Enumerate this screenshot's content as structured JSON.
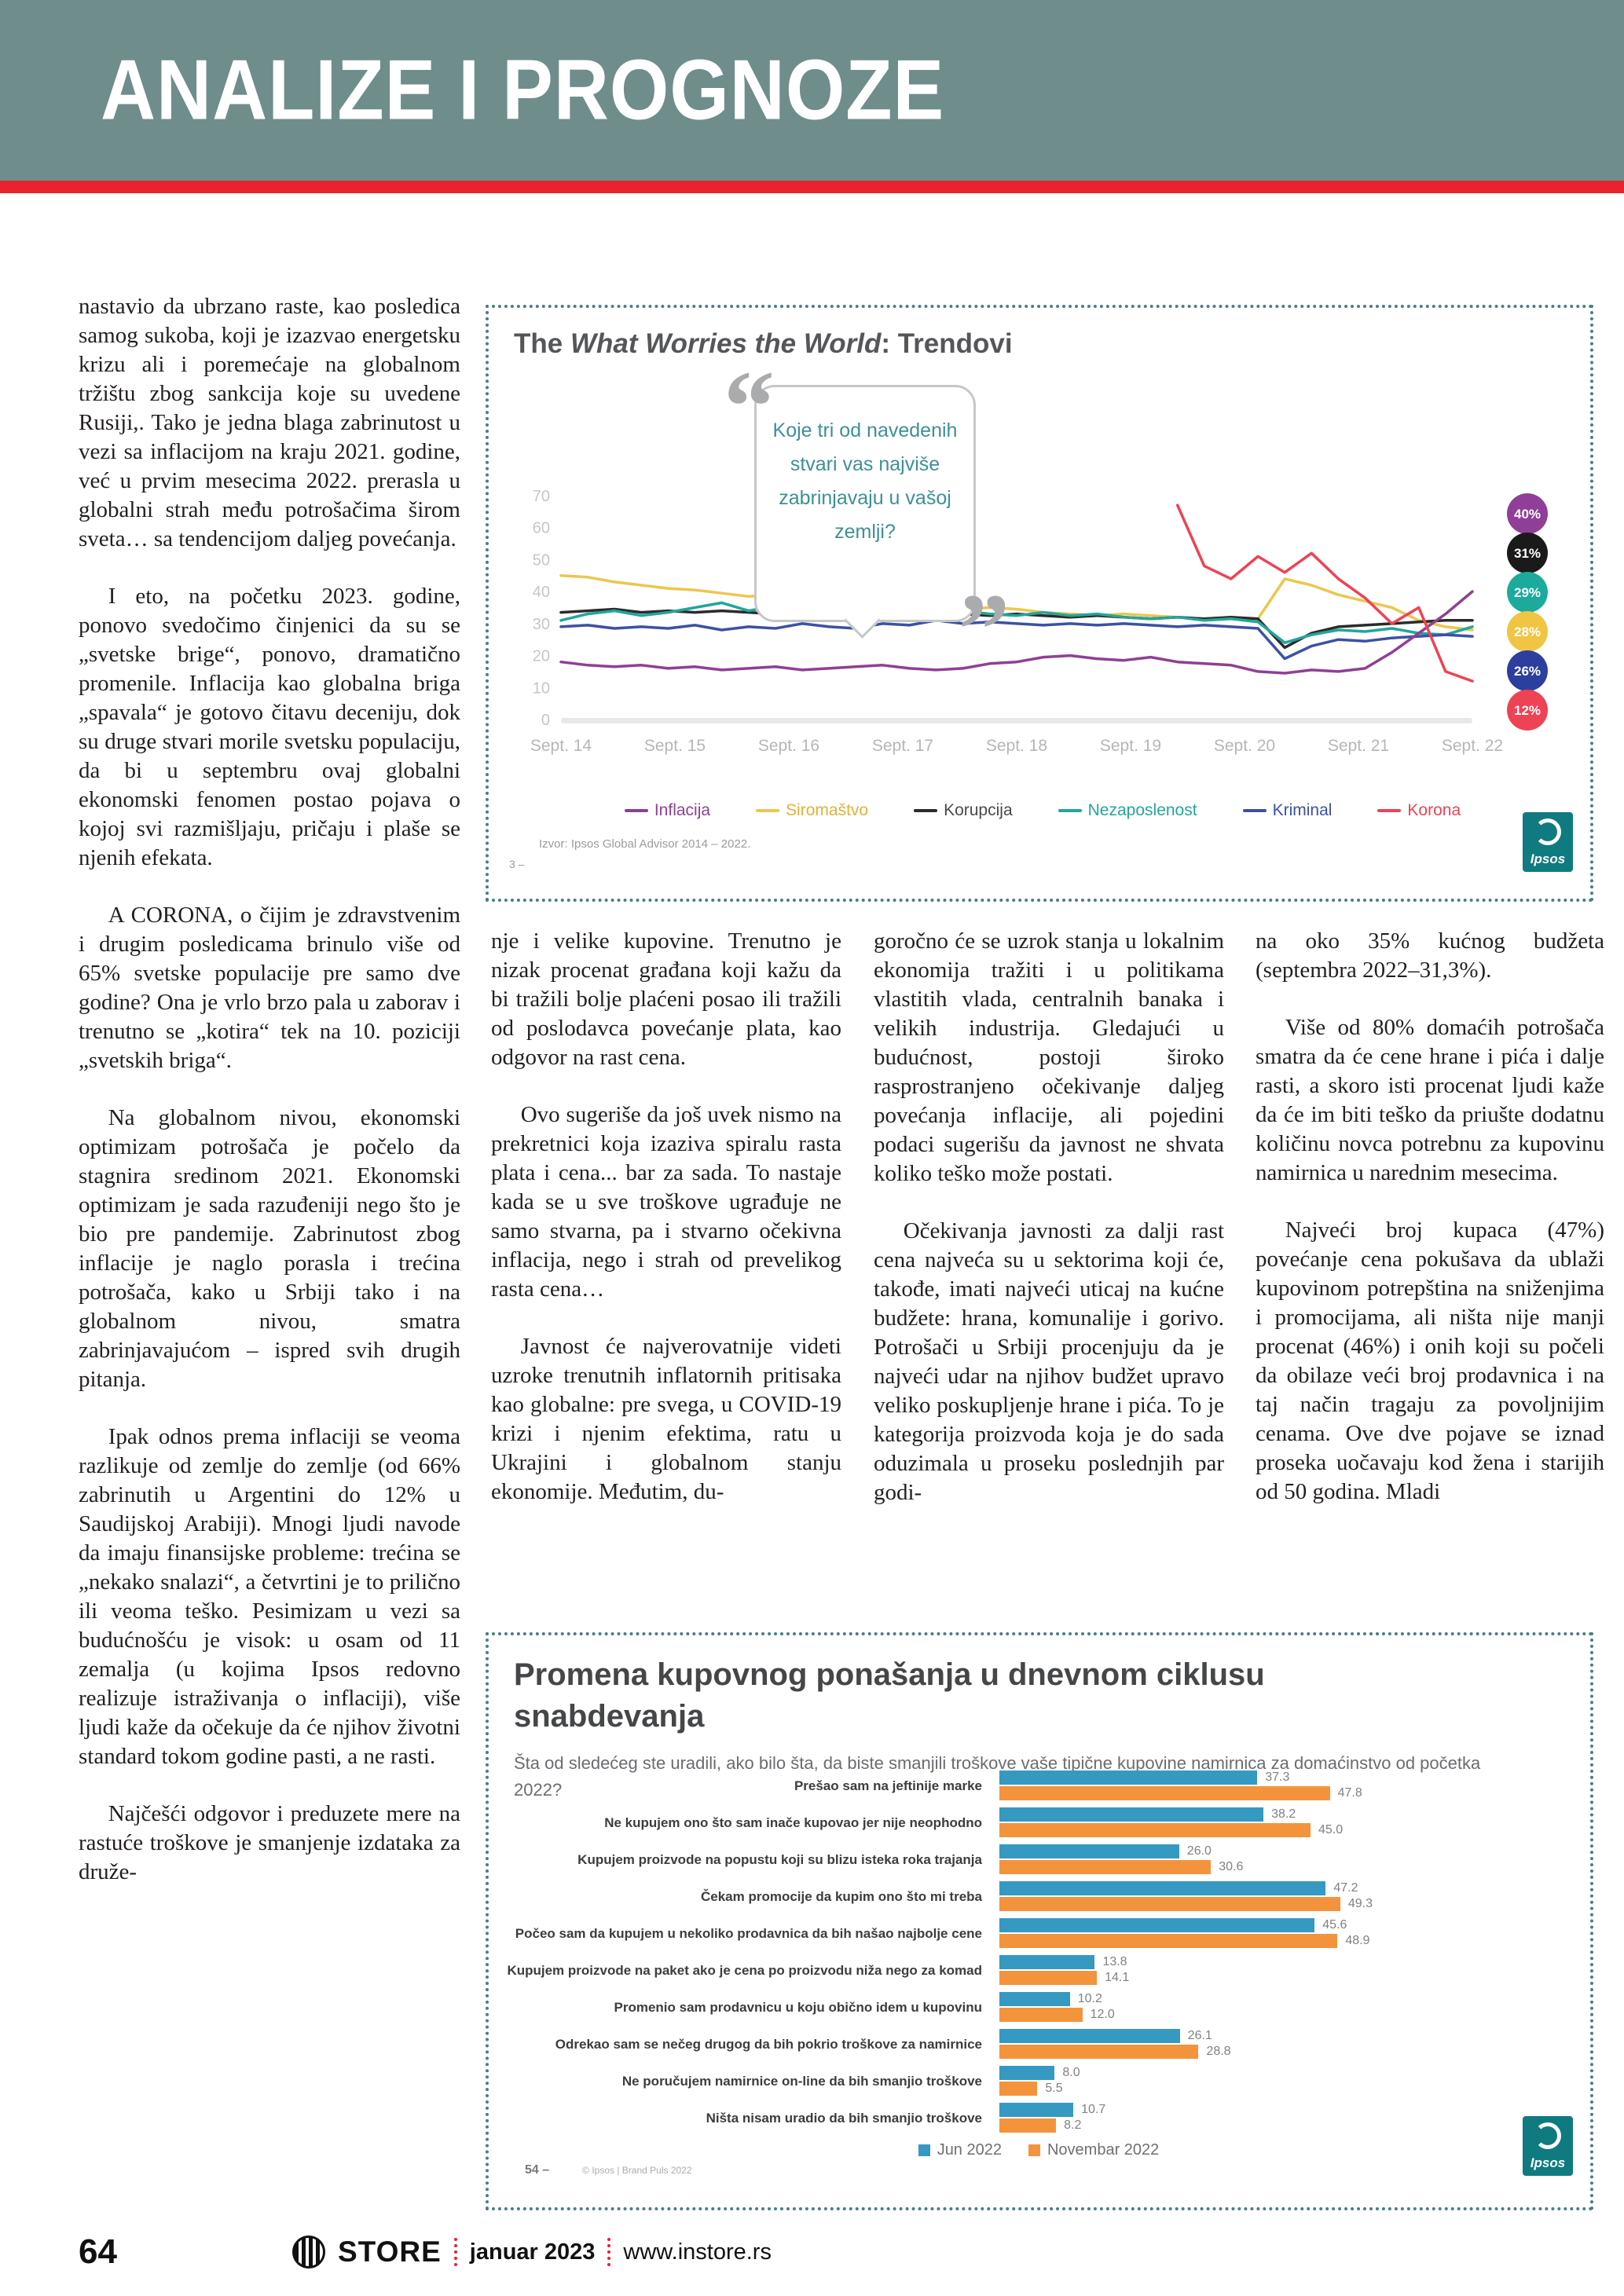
{
  "header": {
    "title": "ANALIZE I PROGNOZE"
  },
  "footer": {
    "page_number": "64",
    "brand": "STORE",
    "issue": "januar 2023",
    "site": "www.instore.rs"
  },
  "ipsos_logo_text": "Ipsos",
  "colors": {
    "header_bg": "#6f8d8b",
    "accent_red": "#e8222f",
    "chart_border": "#4a7d80",
    "ipsos_teal": "#0f7b80"
  },
  "article": {
    "columns": [
      {
        "name": "col1",
        "paragraphs": [
          "nastavio da ubrzano raste, kao posledica samog sukoba, koji je izazvao energetsku krizu  ali i poremećaje na globalnom tržištu zbog sankcija koje su uvedene Rusiji,. Tako je jedna blaga zabrinutost u vezi sa inflacijom na kraju 2021. godine, već u prvim mesecima 2022. prerasla u globalni strah među potrošačima širom sveta… sa tendencijom daljeg povećanja.",
          "I eto, na početku 2023. godine, ponovo svedočimo činjenici da su se „svetske brige“, ponovo, dramatično promenile. Inflacija kao globalna briga „spavala“ je gotovo čitavu deceniju, dok su druge stvari morile svetsku populaciju, da bi u septembru ovaj globalni ekonomski fenomen postao pojava o kojoj svi razmišljaju, pričaju i plaše se njenih efekata.",
          "A CORONA, o čijim je zdravstvenim i drugim posledicama brinulo više od 65% svetske populacije pre samo dve godine? Ona je vrlo brzo pala u zaborav i trenutno se „kotira“ tek na 10. poziciji „svetskih briga“.",
          "Na globalnom nivou, ekonomski optimizam potrošača je počelo da stagnira sredinom 2021. Ekonomski optimizam je sada razuđeniji nego što je bio pre pandemije. Zabrinutost zbog inflacije je naglo porasla i trećina potrošača, kako u Srbiji tako i na globalnom nivou, smatra zabrinjavajućom – ispred svih drugih pitanja.",
          "Ipak odnos prema inflaciji se veoma razlikuje od zemlje do zemlje (od 66% zabrinutih u Argentini do 12% u Saudijskoj Arabiji). Mnogi ljudi navode da imaju finansijske probleme: trećina se „nekako snalazi“, a četvrtini je to prilično ili veoma teško. Pesimizam u vezi sa budućnošću je visok: u osam od 11 zemalja (u kojima Ipsos redovno realizuje istraživanja o inflaciji), više ljudi kaže da očekuje da će njihov životni standard tokom godine pasti, a ne rasti.",
          "Najčešći odgovor i preduzete mere na rastuće troškove je smanjenje izdataka za druže-"
        ]
      },
      {
        "name": "col2",
        "paragraphs": [
          "nje i velike kupovine. Trenutno je nizak procenat građana koji kažu da bi tražili bolje plaćeni posao ili tražili od poslodavca povećanje plata, kao odgovor na rast cena.",
          "Ovo sugeriše da još uvek nismo na prekretnici koja izaziva spiralu rasta plata i cena... bar za sada. To nastaje kada se u sve troškove ugrađuje ne samo stvarna, pa i stvarno očekivna inflacija, nego i strah od prevelikog rasta cena…",
          "Javnost će najverovatnije videti uzroke trenutnih inflatornih pritisaka kao globalne: pre svega, u COVID-19 krizi i njenim efektima, ratu u Ukrajini i globalnom stanju ekonomije. Međutim, du-"
        ]
      },
      {
        "name": "col3",
        "paragraphs": [
          "goročno će se uzrok stanja u lokalnim ekonomija tražiti i u politikama vlastitih vlada, centralnih banaka i velikih industrija. Gledajući u budućnost, postoji široko rasprostranjeno očekivanje daljeg povećanja inflacije, ali pojedini podaci sugerišu da javnost ne shvata koliko teško može postati.",
          "Očekivanja javnosti za dalji rast cena najveća su u sektorima koji će, takođe, imati najveći uticaj na kućne budžete: hrana, komunalije i gorivo. Potrošači u Srbiji procenjuju da je najveći udar na njihov budžet upravo veliko poskupljenje hrane i pića. To je kategorija proizvoda koja je do sada oduzimala u proseku poslednjih par godi-"
        ]
      },
      {
        "name": "col4",
        "paragraphs": [
          "na oko 35% kućnog budžeta (septembra 2022–31,3%).",
          "Više od 80% domaćih potrošača smatra da će cene hrane i pića i dalje rasti, a skoro isti procenat ljudi kaže da će im biti teško da priušte dodatnu količinu novca potrebnu za kupovinu namirnica u narednim mesecima.",
          "Najveći broj kupaca (47%) povećanje cena pokušava da ublaži kupovinom potrepština na sniženjima i promocijama, ali ništa nije manji procenat (46%) i onih koji su počeli da obilaze veći broj prodavnica i na taj način tragaju za povoljnijim cenama. Ove dve pojave se iznad proseka uočavaju kod žena i starijih od 50 godina. Mladi"
        ]
      }
    ]
  },
  "chart1": {
    "title_prefix": "The ",
    "title_italic": "What Worries the World",
    "title_suffix": ": Trendovi",
    "bubble_question": "Koje tri od navedenih stvari vas najviše zabrinjavaju u vašoj zemlji?",
    "source": "Izvor: Ipsos Global Advisor 2014 – 2022.",
    "slide_number": "3 –"
  },
  "chart2": {
    "footnote_number": "54 –",
    "footnote_copy": "© Ipsos | Brand Puls  2022"
  },
  "chart_data": [
    {
      "type": "line",
      "title": "The What Worries the World: Trendovi",
      "question": "Koje tri od navedenih stvari vas najviše zabrinjavaju u vašoj zemlji?",
      "ylim": [
        0,
        70
      ],
      "yticks": [
        0,
        10,
        20,
        30,
        40,
        50,
        60,
        70
      ],
      "xticklabels": [
        "Sept. 14",
        "Sept. 15",
        "Sept. 16",
        "Sept. 17",
        "Sept. 18",
        "Sept. 19",
        "Sept. 20",
        "Sept. 21",
        "Sept. 22"
      ],
      "grid": false,
      "legend_position": "bottom",
      "series": [
        {
          "name": "Siromaštvo",
          "color": "#edc64f",
          "label_color": "#dfb23c",
          "end_value": "28%",
          "values": [
            45,
            44.5,
            43,
            42,
            41,
            40.5,
            39.5,
            38.5,
            39,
            38,
            37.5,
            36.5,
            37,
            36.5,
            35.5,
            34.5,
            35,
            34.5,
            33.5,
            33,
            32.5,
            33,
            32.5,
            32,
            31.5,
            32,
            31.5,
            44,
            42,
            39,
            37,
            35,
            31,
            29,
            28
          ]
        },
        {
          "name": "Korupcija",
          "color": "#2b2b2b",
          "label_color": "#4a4a4c",
          "end_value": "31%",
          "values": [
            33.5,
            34,
            34.5,
            33.5,
            34,
            33.5,
            34,
            33.5,
            33,
            33.5,
            33,
            33.5,
            33,
            32.5,
            33,
            33,
            32.5,
            33,
            32.5,
            32,
            32.5,
            32,
            31.5,
            32,
            31.5,
            32,
            31.5,
            22.5,
            27,
            29,
            29.5,
            30,
            30.5,
            31,
            31
          ]
        },
        {
          "name": "Nezaposlenost",
          "color": "#22a69a",
          "label_color": "#22a69a",
          "end_value": "29%",
          "values": [
            31,
            33,
            34,
            32.5,
            33.5,
            35,
            36.5,
            34,
            35.5,
            37,
            35,
            33.5,
            34.5,
            36,
            33,
            34,
            33,
            32.5,
            33.5,
            32.5,
            33,
            32,
            31.5,
            32,
            31,
            31.5,
            30.5,
            24,
            26.5,
            28,
            27.5,
            28.5,
            27,
            26.5,
            29
          ]
        },
        {
          "name": "Kriminal",
          "color": "#3c51a3",
          "label_color": "#3c51a3",
          "end_value": "26%",
          "values": [
            29,
            29.5,
            28.5,
            29,
            28.5,
            29.5,
            28,
            29,
            28.5,
            30,
            29,
            28.5,
            30,
            29.5,
            31,
            30,
            30.5,
            30,
            29.5,
            30,
            29.5,
            30,
            29.5,
            29,
            29.5,
            29,
            28.5,
            19,
            23,
            25,
            24.5,
            25.5,
            26,
            26.5,
            26
          ]
        },
        {
          "name": "Inflacija",
          "color": "#8f3f97",
          "label_color": "#8f3f97",
          "end_value": "40%",
          "values": [
            18,
            17,
            16.5,
            17,
            16,
            16.5,
            15.5,
            16,
            16.5,
            15.5,
            16,
            16.5,
            17,
            16,
            15.5,
            16,
            17.5,
            18,
            19.5,
            20,
            19,
            18.5,
            19.5,
            18,
            17.5,
            17,
            15,
            14.5,
            15.5,
            15,
            16,
            21,
            27,
            33,
            40
          ]
        },
        {
          "name": "Korona",
          "color": "#ee4355",
          "label_color": "#ee4355",
          "end_value": "12%",
          "values": [
            null,
            null,
            null,
            null,
            null,
            null,
            null,
            null,
            null,
            null,
            null,
            null,
            null,
            null,
            null,
            null,
            null,
            null,
            null,
            null,
            null,
            null,
            null,
            67,
            48,
            44,
            51,
            46,
            52,
            44,
            38,
            30,
            35,
            15,
            12
          ]
        }
      ],
      "legend_order": [
        "Inflacija",
        "Siromaštvo",
        "Korupcija",
        "Nezaposlenost",
        "Kriminal",
        "Korona"
      ],
      "end_badges": [
        {
          "label": "40%",
          "color": "#8f3f97"
        },
        {
          "label": "31%",
          "color": "#1a1a1a"
        },
        {
          "label": "29%",
          "color": "#1caa9c"
        },
        {
          "label": "28%",
          "color": "#f0c544"
        },
        {
          "label": "26%",
          "color": "#2c3f9e"
        },
        {
          "label": "12%",
          "color": "#ee4355"
        }
      ]
    },
    {
      "type": "bar",
      "orientation": "horizontal",
      "title": "Promena kupovnog ponašanja u dnevnom ciklusu snabdevanja",
      "subtitle": "Šta od sledećeg ste uradili, ako bilo šta, da biste smanjili troškove vaše tipične kupovine  namirnica za domaćinstvo od početka 2022?",
      "categories": [
        "Prešao sam na jeftinije marke",
        "Ne kupujem ono što sam inače kupovao jer nije neophodno",
        "Kupujem proizvode na popustu koji su blizu isteka roka trajanja",
        "Čekam promocije da kupim ono što mi treba",
        "Počeo sam da kupujem u nekoliko prodavnica da bih našao najbolje cene",
        "Kupujem proizvode na paket ako je cena po proizvodu niža  nego za komad",
        "Promenio sam prodavnicu u koju obično idem u kupovinu",
        "Odrekao sam se nečeg  drugog da bih pokrio troškove za namirnice",
        "Ne poručujem namirnice on-line da bih smanjio troškove",
        "Ništa nisam uradio da bih smanjio troškove"
      ],
      "series": [
        {
          "name": "Jun 2022",
          "color": "#3599c2",
          "values": [
            37.3,
            38.2,
            26.0,
            47.2,
            45.6,
            13.8,
            10.2,
            26.1,
            8.0,
            10.7
          ]
        },
        {
          "name": "Novembar 2022",
          "color": "#f3943d",
          "values": [
            47.8,
            45.0,
            30.6,
            49.3,
            48.9,
            14.1,
            12.0,
            28.8,
            5.5,
            8.2
          ]
        }
      ],
      "xlim": [
        0,
        55
      ]
    }
  ]
}
